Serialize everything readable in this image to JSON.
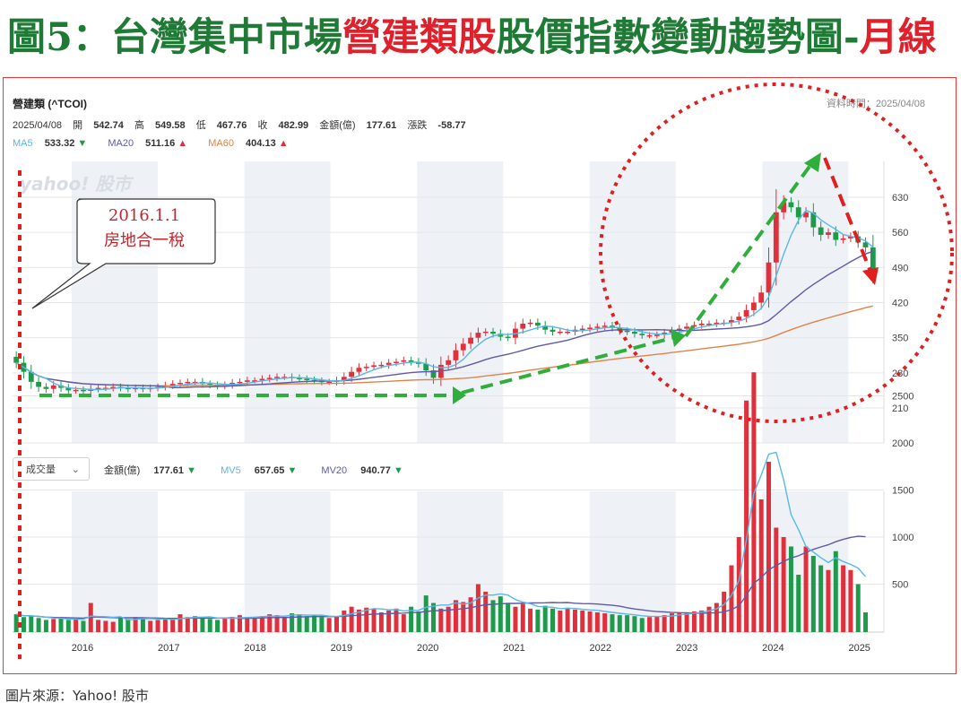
{
  "title": {
    "part1": "圖5：台灣集中市場",
    "part2": "營建類股",
    "part3": "股價指數變動趨勢圖-",
    "part4": "月線"
  },
  "header": {
    "stock_name": "營建類 (^TCOI)",
    "as_of": "資料時間：2025/04/08",
    "date": "2025/04/08",
    "open_label": "開",
    "open": "542.74",
    "high_label": "高",
    "high": "549.58",
    "low_label": "低",
    "low": "467.76",
    "close_label": "收",
    "close": "482.99",
    "amount_label": "金額(億)",
    "amount": "177.61",
    "change_label": "漲跌",
    "change": "-58.77",
    "ma5_label": "MA5",
    "ma5": "533.32",
    "ma5_arrow": "▼",
    "ma20_label": "MA20",
    "ma20": "511.16",
    "ma20_arrow": "▲",
    "ma60_label": "MA60",
    "ma60": "404.13",
    "ma60_arrow": "▲"
  },
  "volume_header": {
    "select_label": "成交量",
    "amount_label": "金額(億)",
    "amount": "177.61",
    "amount_arrow": "▼",
    "mv5_label": "MV5",
    "mv5": "657.65",
    "mv5_arrow": "▼",
    "mv20_label": "MV20",
    "mv20": "940.77",
    "mv20_arrow": "▼"
  },
  "watermark": "yahoo! 股市",
  "annotation": {
    "line1": "2016.1.1",
    "line2": "房地合一稅"
  },
  "source": "圖片來源：Yahoo! 股市",
  "colors": {
    "up": "#e0303b",
    "down": "#1f9a4a",
    "ma5": "#57b8e6",
    "ma20": "#5d5aa8",
    "ma60": "#e0834a",
    "annot_green": "#2fae3b",
    "annot_red": "#e02020",
    "title_green": "#1f7a35"
  },
  "chart_data": [
    {
      "type": "candlestick",
      "title": "營建類 (^TCOI)",
      "x_years": [
        "2016",
        "2017",
        "2018",
        "2019",
        "2020",
        "2021",
        "2022",
        "2023",
        "2024",
        "2025"
      ],
      "y_ticks": [
        210,
        280,
        350,
        420,
        490,
        560,
        630
      ],
      "ylim": [
        160,
        700
      ],
      "close_series": [
        300,
        282,
        262,
        252,
        248,
        255,
        250,
        245,
        246,
        244,
        248,
        250,
        250,
        252,
        250,
        248,
        250,
        248,
        250,
        252,
        255,
        258,
        260,
        262,
        262,
        258,
        256,
        254,
        256,
        260,
        262,
        265,
        265,
        268,
        270,
        272,
        272,
        270,
        268,
        266,
        264,
        262,
        262,
        265,
        272,
        282,
        290,
        292,
        295,
        296,
        300,
        302,
        305,
        302,
        298,
        285,
        270,
        296,
        305,
        325,
        338,
        350,
        360,
        362,
        358,
        352,
        350,
        368,
        378,
        380,
        374,
        366,
        362,
        362,
        362,
        366,
        368,
        370,
        372,
        374,
        370,
        364,
        362,
        358,
        355,
        355,
        356,
        360,
        364,
        368,
        372,
        375,
        378,
        378,
        380,
        380,
        385,
        392,
        405,
        420,
        440,
        500,
        600,
        620,
        610,
        590,
        600,
        570,
        555,
        560,
        545,
        548,
        552,
        540,
        530,
        482.99
      ],
      "series": [
        {
          "name": "MA5",
          "last": 533.32
        },
        {
          "name": "MA20",
          "last": 511.16
        },
        {
          "name": "MA60",
          "last": 404.13
        }
      ]
    },
    {
      "type": "bar",
      "title": "成交量",
      "y_ticks": [
        500,
        1000,
        1500,
        2000,
        2500
      ],
      "ylim": [
        0,
        2900
      ],
      "values": [
        180,
        150,
        160,
        140,
        120,
        130,
        140,
        120,
        130,
        110,
        300,
        120,
        110,
        100,
        140,
        130,
        150,
        140,
        110,
        120,
        130,
        120,
        180,
        150,
        160,
        140,
        130,
        120,
        140,
        150,
        170,
        150,
        140,
        160,
        180,
        170,
        150,
        190,
        180,
        160,
        170,
        150,
        140,
        160,
        220,
        260,
        230,
        250,
        240,
        200,
        220,
        240,
        180,
        260,
        210,
        380,
        300,
        240,
        260,
        330,
        310,
        360,
        500,
        420,
        330,
        370,
        300,
        260,
        290,
        240,
        230,
        270,
        240,
        220,
        250,
        230,
        220,
        210,
        200,
        190,
        180,
        170,
        170,
        160,
        140,
        150,
        160,
        170,
        190,
        190,
        200,
        210,
        220,
        260,
        300,
        420,
        700,
        1000,
        2450,
        2750,
        1400,
        1800,
        1100,
        1000,
        900,
        600,
        900,
        800,
        700,
        650,
        850,
        700,
        650,
        500,
        200
      ]
    }
  ]
}
